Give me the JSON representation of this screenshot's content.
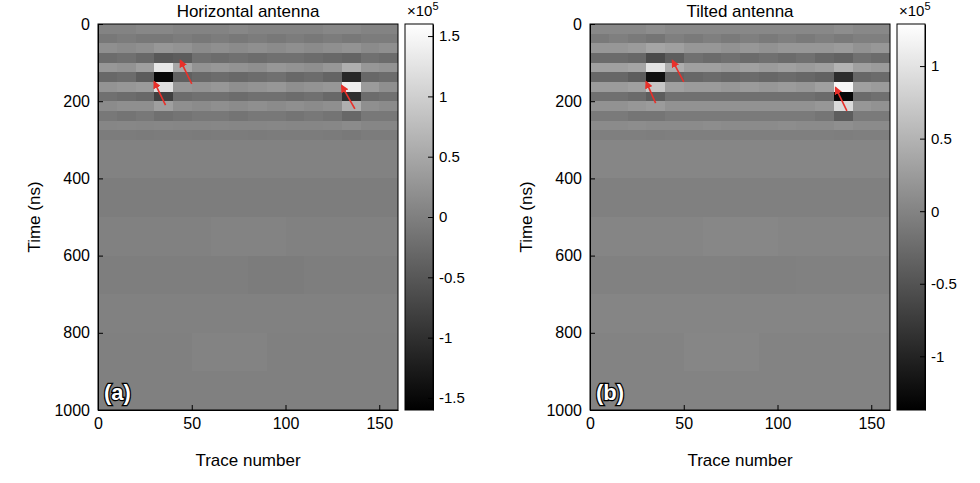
{
  "chart_data": [
    {
      "type": "heatmap",
      "title": "Horizontal antenna",
      "panel_label": "(a)",
      "x_label": "Trace number",
      "y_label": "Time (ns)",
      "xlim": [
        0,
        160
      ],
      "xticks": [
        0,
        50,
        100,
        150
      ],
      "ylim": [
        0,
        1000
      ],
      "yticks": [
        0,
        200,
        400,
        600,
        800,
        1000
      ],
      "trace_edges": [
        0,
        10,
        20,
        30,
        40,
        50,
        60,
        70,
        80,
        90,
        100,
        110,
        120,
        130,
        140,
        150,
        160
      ],
      "time_edges": [
        0,
        25,
        50,
        75,
        100,
        125,
        150,
        175,
        200,
        225,
        250,
        275,
        300,
        400,
        500,
        600,
        700,
        800,
        900,
        1000
      ],
      "cells": [
        [
          0.05,
          0.05,
          0.1,
          0.1,
          0.05,
          0.05,
          0.05,
          0.1,
          0.05,
          0.05,
          0.05,
          0.05,
          0.1,
          0.1,
          0.05,
          0.05
        ],
        [
          -0.1,
          -0.05,
          -0.1,
          -0.1,
          -0.05,
          -0.1,
          -0.05,
          -0.1,
          -0.05,
          -0.1,
          -0.05,
          -0.1,
          -0.05,
          -0.1,
          -0.05,
          -0.05
        ],
        [
          0.2,
          0.15,
          0.2,
          0.3,
          0.25,
          0.15,
          0.2,
          0.15,
          0.2,
          0.15,
          0.2,
          0.15,
          0.2,
          0.25,
          0.15,
          0.2
        ],
        [
          -0.25,
          -0.2,
          -0.3,
          -0.5,
          -0.45,
          -0.2,
          -0.25,
          -0.2,
          -0.25,
          -0.2,
          -0.2,
          -0.25,
          -0.3,
          -0.35,
          -0.2,
          -0.25
        ],
        [
          0.3,
          0.25,
          0.4,
          1.3,
          0.5,
          0.25,
          0.3,
          0.25,
          0.2,
          0.3,
          0.25,
          0.2,
          0.3,
          0.6,
          0.3,
          0.25
        ],
        [
          -0.3,
          -0.25,
          -0.45,
          -1.5,
          -0.4,
          -0.3,
          -0.25,
          -0.3,
          -0.25,
          -0.2,
          -0.3,
          -0.25,
          -0.35,
          -1.1,
          -0.3,
          -0.25
        ],
        [
          0.25,
          0.3,
          0.35,
          1.2,
          0.3,
          0.25,
          0.3,
          0.2,
          0.25,
          0.3,
          0.2,
          0.25,
          0.3,
          1.4,
          0.35,
          0.2
        ],
        [
          -0.2,
          -0.25,
          -0.3,
          -0.8,
          -0.25,
          -0.2,
          -0.2,
          -0.25,
          -0.2,
          -0.2,
          -0.25,
          -0.2,
          -0.3,
          -1.0,
          -0.25,
          -0.2
        ],
        [
          0.15,
          0.2,
          0.2,
          0.4,
          0.2,
          0.15,
          0.2,
          0.15,
          0.2,
          0.15,
          0.2,
          0.15,
          0.2,
          0.6,
          0.2,
          0.15
        ],
        [
          -0.1,
          -0.15,
          -0.1,
          -0.2,
          -0.15,
          -0.1,
          -0.1,
          -0.15,
          -0.1,
          -0.1,
          -0.15,
          -0.1,
          -0.15,
          -0.3,
          -0.1,
          -0.1
        ],
        [
          0.08,
          0.1,
          0.08,
          0.1,
          0.08,
          0.08,
          0.1,
          0.08,
          0.08,
          0.1,
          0.08,
          0.08,
          0.1,
          0.15,
          0.08,
          0.08
        ],
        [
          -0.05,
          -0.05,
          -0.06,
          -0.05,
          -0.05,
          -0.06,
          -0.05,
          -0.05,
          -0.06,
          -0.05,
          -0.05,
          -0.05,
          -0.06,
          -0.08,
          -0.05,
          -0.05
        ],
        [
          0.03,
          0.03,
          0.03,
          0.03,
          0.03,
          0.03,
          0.03,
          0.03,
          0.03,
          0.03,
          0.03,
          0.03,
          0.03,
          0.03,
          0.03,
          0.03
        ],
        [
          -0.03,
          -0.03,
          -0.03,
          -0.03,
          -0.03,
          -0.03,
          -0.03,
          -0.03,
          -0.03,
          -0.03,
          -0.03,
          -0.03,
          -0.03,
          -0.03,
          -0.03,
          -0.03
        ],
        [
          0.02,
          0.02,
          0.02,
          0.02,
          0.02,
          0.02,
          0.05,
          0.05,
          0.05,
          0.05,
          0.02,
          0.02,
          0.02,
          0.02,
          0.02,
          0.02
        ],
        [
          -0.02,
          -0.02,
          -0.02,
          -0.02,
          -0.02,
          -0.02,
          -0.02,
          -0.02,
          -0.05,
          -0.05,
          -0.05,
          -0.02,
          -0.02,
          -0.02,
          -0.02,
          -0.02
        ],
        [
          0.02,
          0.02,
          0.02,
          0.02,
          0.02,
          0.02,
          0.02,
          0.02,
          0.02,
          0.02,
          0.02,
          0.02,
          0.02,
          0.02,
          0.02,
          0.02
        ],
        [
          0,
          0,
          0,
          0,
          0,
          0.04,
          0.04,
          0.04,
          0.04,
          0,
          0,
          0,
          0,
          0,
          0,
          0
        ],
        [
          0,
          0,
          0,
          0,
          0,
          0,
          0,
          0,
          0,
          0,
          0,
          0,
          0,
          0,
          0,
          0
        ]
      ],
      "colorbar_range": [
        -1.6,
        1.6
      ],
      "colorbar_ticks": [
        -1.5,
        -1,
        -0.5,
        0,
        0.5,
        1,
        1.5
      ],
      "colorbar_multiplier": {
        "base": "×10",
        "exponent": "5"
      },
      "arrows": [
        {
          "tip_trace": 30,
          "tip_time": 150,
          "tail_trace": 36,
          "tail_time": 210
        },
        {
          "tip_trace": 44,
          "tip_time": 95,
          "tail_trace": 50,
          "tail_time": 155
        },
        {
          "tip_trace": 130,
          "tip_time": 160,
          "tail_trace": 137,
          "tail_time": 220
        }
      ],
      "color": "#e8302a"
    },
    {
      "type": "heatmap",
      "title": "Tilted antenna",
      "panel_label": "(b)",
      "x_label": "Trace number",
      "y_label": "Time (ns)",
      "xlim": [
        0,
        160
      ],
      "xticks": [
        0,
        50,
        100,
        150
      ],
      "ylim": [
        0,
        1000
      ],
      "yticks": [
        0,
        200,
        400,
        600,
        800,
        1000
      ],
      "trace_edges": [
        0,
        10,
        20,
        30,
        40,
        50,
        60,
        70,
        80,
        90,
        100,
        110,
        120,
        130,
        140,
        150,
        160
      ],
      "time_edges": [
        0,
        25,
        50,
        75,
        100,
        125,
        150,
        175,
        200,
        225,
        250,
        275,
        300,
        400,
        500,
        600,
        700,
        800,
        900,
        1000
      ],
      "cells": [
        [
          0.05,
          0.05,
          0.05,
          0.1,
          0.05,
          0.05,
          0.05,
          0.05,
          0.05,
          0.05,
          0.05,
          0.05,
          0.05,
          0.1,
          0.05,
          0.05
        ],
        [
          -0.1,
          -0.05,
          -0.1,
          -0.15,
          -0.05,
          -0.1,
          -0.05,
          -0.1,
          -0.05,
          -0.1,
          -0.05,
          -0.1,
          -0.05,
          -0.1,
          -0.05,
          -0.05
        ],
        [
          0.2,
          0.2,
          0.25,
          0.35,
          0.3,
          0.2,
          0.2,
          0.15,
          0.2,
          0.15,
          0.2,
          0.2,
          0.2,
          0.25,
          0.15,
          0.2
        ],
        [
          -0.25,
          -0.25,
          -0.3,
          -0.6,
          -0.4,
          -0.2,
          -0.25,
          -0.2,
          -0.25,
          -0.2,
          -0.25,
          -0.2,
          -0.3,
          -0.35,
          -0.2,
          -0.25
        ],
        [
          0.3,
          0.3,
          0.35,
          1.0,
          0.45,
          0.3,
          0.3,
          0.25,
          0.3,
          0.25,
          0.3,
          0.25,
          0.3,
          0.5,
          0.3,
          0.25
        ],
        [
          -0.3,
          -0.3,
          -0.4,
          -1.2,
          -0.35,
          -0.3,
          -0.25,
          -0.3,
          -0.25,
          -0.3,
          -0.25,
          -0.3,
          -0.35,
          -0.9,
          -0.3,
          -0.25
        ],
        [
          0.25,
          0.25,
          0.3,
          0.7,
          0.3,
          0.25,
          0.25,
          0.2,
          0.25,
          0.2,
          0.25,
          0.2,
          0.3,
          1.2,
          0.3,
          0.25
        ],
        [
          -0.2,
          -0.2,
          -0.25,
          -0.4,
          -0.2,
          -0.2,
          -0.2,
          -0.2,
          -0.2,
          -0.2,
          -0.2,
          -0.2,
          -0.25,
          -1.3,
          -0.25,
          -0.2
        ],
        [
          0.15,
          0.15,
          0.2,
          0.25,
          0.15,
          0.15,
          0.15,
          0.15,
          0.15,
          0.15,
          0.15,
          0.15,
          0.2,
          0.9,
          0.2,
          0.15
        ],
        [
          -0.1,
          -0.1,
          -0.15,
          -0.15,
          -0.1,
          -0.1,
          -0.1,
          -0.1,
          -0.1,
          -0.1,
          -0.1,
          -0.1,
          -0.15,
          -0.4,
          -0.1,
          -0.1
        ],
        [
          0.08,
          0.08,
          0.1,
          0.08,
          0.08,
          0.08,
          0.1,
          0.08,
          0.08,
          0.08,
          0.1,
          0.08,
          0.08,
          0.12,
          0.08,
          0.08
        ],
        [
          -0.05,
          -0.05,
          -0.05,
          -0.06,
          -0.05,
          -0.05,
          -0.05,
          -0.05,
          -0.05,
          -0.05,
          -0.05,
          -0.05,
          -0.05,
          -0.06,
          -0.05,
          -0.05
        ],
        [
          0.03,
          0.03,
          0.03,
          0.03,
          0.03,
          0.03,
          0.03,
          0.03,
          0.03,
          0.03,
          0.03,
          0.03,
          0.03,
          0.03,
          0.03,
          0.03
        ],
        [
          -0.03,
          -0.03,
          -0.03,
          -0.03,
          -0.03,
          -0.03,
          -0.03,
          -0.03,
          -0.03,
          -0.03,
          -0.03,
          -0.03,
          -0.03,
          -0.03,
          -0.03,
          -0.03
        ],
        [
          0.02,
          0.02,
          0.02,
          0.02,
          0.02,
          0.02,
          0.04,
          0.04,
          0.04,
          0.04,
          0.02,
          0.02,
          0.02,
          0.02,
          0.02,
          0.02
        ],
        [
          -0.02,
          -0.02,
          -0.02,
          -0.02,
          -0.02,
          -0.02,
          -0.02,
          -0.02,
          -0.04,
          -0.04,
          -0.04,
          -0.02,
          -0.02,
          -0.02,
          -0.02,
          -0.02
        ],
        [
          0.02,
          0.02,
          0.02,
          0.02,
          0.02,
          0.02,
          0.02,
          0.02,
          0.02,
          0.02,
          0.02,
          0.02,
          0.02,
          0.02,
          0.02,
          0.02
        ],
        [
          0,
          0,
          0,
          0,
          0,
          0.03,
          0.03,
          0.03,
          0.03,
          0,
          0,
          0,
          0,
          0,
          0,
          0
        ],
        [
          0,
          0,
          0,
          0,
          0,
          0,
          0,
          0,
          0,
          0,
          0,
          0,
          0,
          0,
          0,
          0
        ]
      ],
      "colorbar_range": [
        -1.37,
        1.29
      ],
      "colorbar_ticks": [
        -1,
        -0.5,
        0,
        0.5,
        1
      ],
      "colorbar_multiplier": {
        "base": "×10",
        "exponent": "5"
      },
      "arrows": [
        {
          "tip_trace": 30,
          "tip_time": 150,
          "tail_trace": 35,
          "tail_time": 205
        },
        {
          "tip_trace": 44,
          "tip_time": 95,
          "tail_trace": 50,
          "tail_time": 150
        },
        {
          "tip_trace": 131,
          "tip_time": 165,
          "tail_trace": 137,
          "tail_time": 225
        }
      ],
      "color": "#e8302a"
    }
  ]
}
